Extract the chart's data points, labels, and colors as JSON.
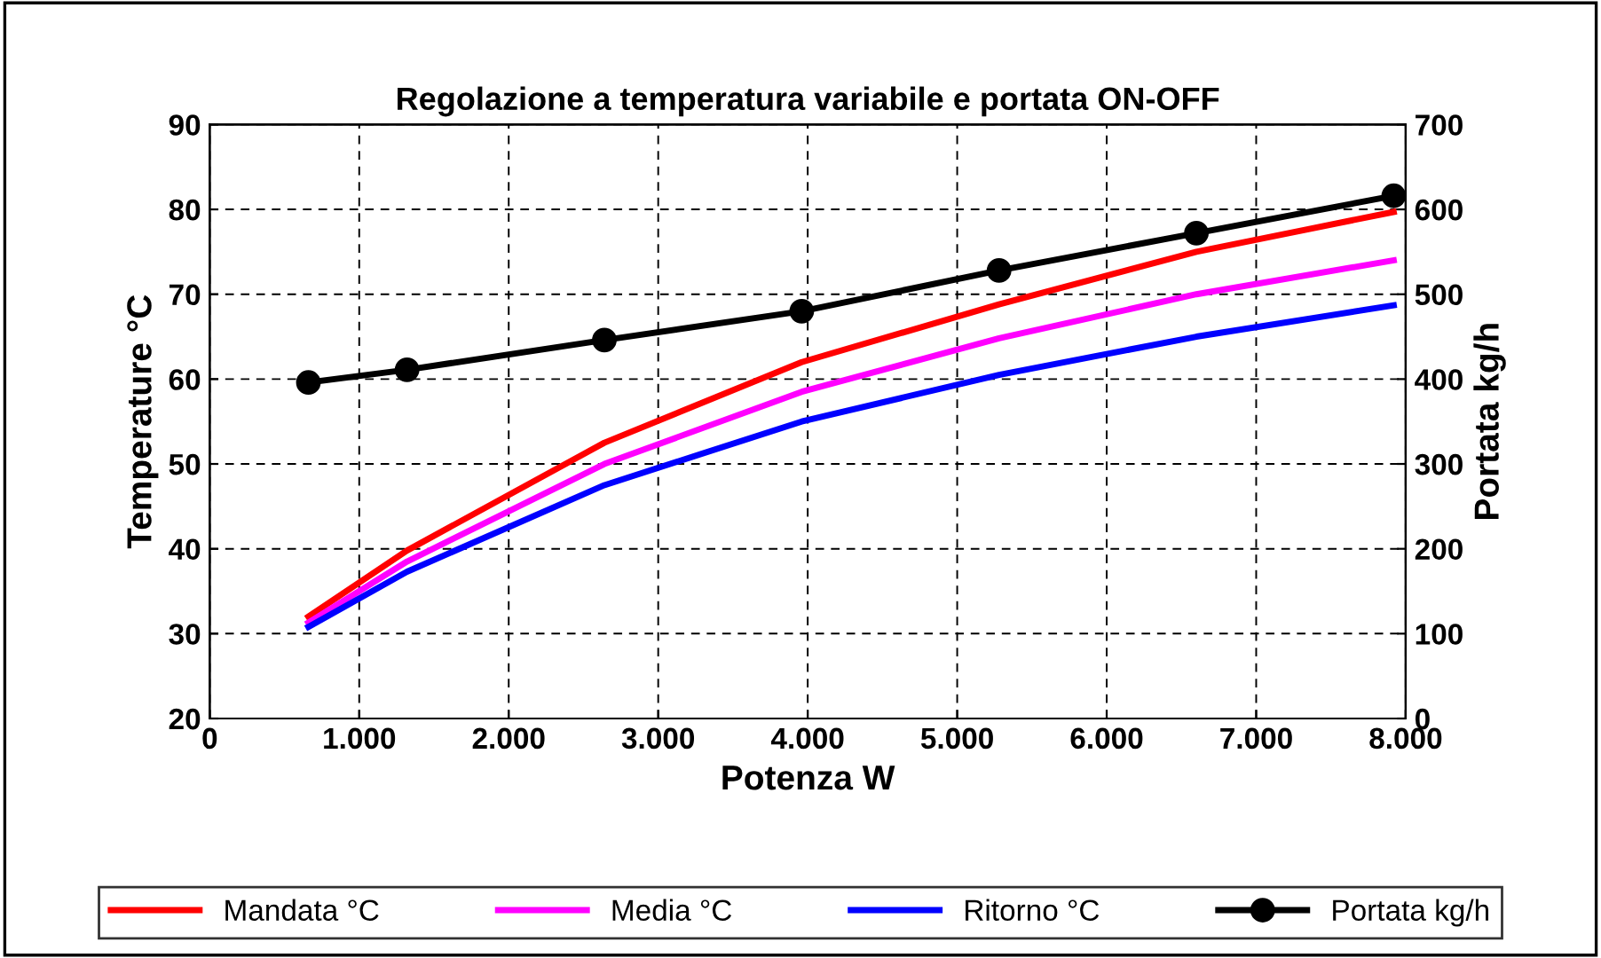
{
  "chart_data": {
    "type": "line",
    "title": "Regolazione a temperatura variabile e portata ON-OFF",
    "xlabel": "Potenza W",
    "ylabel": "Temperature °C",
    "y2label": "Portata kg/h",
    "x": [
      660,
      1320,
      2640,
      3960,
      5280,
      6600,
      7920
    ],
    "series": [
      {
        "name": "Mandata °C",
        "color": "#ff0000",
        "values": [
          32,
          39.8,
          52.5,
          62,
          68.8,
          75,
          79.7
        ],
        "marker": "none"
      },
      {
        "name": "Media °C",
        "color": "#ff00ff",
        "values": [
          31.3,
          38.5,
          50,
          58.5,
          64.8,
          70,
          74
        ],
        "marker": "none"
      },
      {
        "name": "Ritorno °C",
        "color": "#0000ff",
        "values": [
          30.8,
          37.3,
          47.5,
          55,
          60.5,
          65,
          68.7
        ],
        "marker": "none"
      },
      {
        "name": "Portata kg/h",
        "color": "#000000",
        "values": [
          396,
          411,
          446,
          480,
          528,
          572,
          616
        ],
        "axis": "y2",
        "marker": "circle"
      }
    ],
    "xlim": [
      0,
      8000
    ],
    "xticks": [
      0,
      {
        "value": 1000,
        "label": "1.000"
      },
      {
        "value": 2000,
        "label": "2.000"
      },
      {
        "value": 3000,
        "label": "3.000"
      },
      {
        "value": 4000,
        "label": "4.000"
      },
      {
        "value": 5000,
        "label": "5.000"
      },
      {
        "value": 6000,
        "label": "6.000"
      },
      {
        "value": 7000,
        "label": "7.000"
      },
      {
        "value": 8000,
        "label": "8.000"
      }
    ],
    "ylim": [
      20,
      90
    ],
    "yticks": [
      20,
      30,
      40,
      50,
      60,
      70,
      80,
      90
    ],
    "y2lim": [
      0,
      700
    ],
    "y2ticks": [
      0,
      100,
      200,
      300,
      400,
      500,
      600,
      700
    ],
    "grid": true,
    "legend": "bottom",
    "line_style": "solid"
  }
}
